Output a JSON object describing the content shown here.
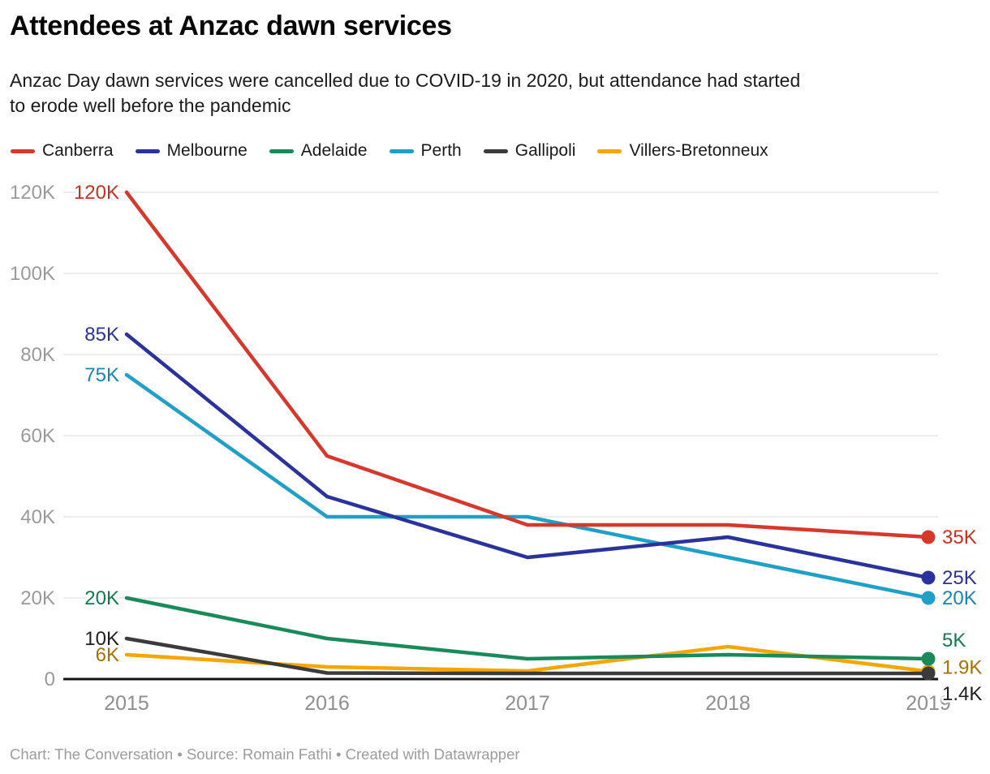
{
  "footer": {
    "credit": "Chart: The Conversation • Source: Romain Fathi • Created with Datawrapper"
  },
  "chart_data": {
    "type": "line",
    "title": "Attendees at Anzac dawn services",
    "subtitle": "Anzac Day dawn services were cancelled due to COVID-19 in 2020, but attendance had started to erode well before the pandemic",
    "subtitle_lines": [
      "Anzac Day dawn services were cancelled due to COVID-19 in 2020, but attendance had started",
      "to erode well before the pandemic"
    ],
    "x": [
      2015,
      2016,
      2017,
      2018,
      2019
    ],
    "x_tick_labels": [
      "2015",
      "2016",
      "2017",
      "2018",
      "2019"
    ],
    "y_ticks": [
      0,
      20000,
      40000,
      60000,
      80000,
      100000,
      120000
    ],
    "y_tick_labels": [
      "0",
      "20K",
      "40K",
      "60K",
      "80K",
      "100K",
      "120K"
    ],
    "ylim": [
      0,
      125000
    ],
    "grid": "horizontal",
    "grid_color": "#e5e5e5",
    "axis_color": "#141414",
    "legend_position": "top",
    "series": [
      {
        "name": "Canberra",
        "color": "#d6392b",
        "label_color": "#c9301f",
        "values": [
          120000,
          55000,
          38000,
          38000,
          35000
        ],
        "start_label": "120K",
        "end_label": "35K"
      },
      {
        "name": "Melbourne",
        "color": "#2a339b",
        "label_color": "#2a339b",
        "values": [
          85000,
          45000,
          30000,
          35000,
          25000
        ],
        "start_label": "85K",
        "end_label": "25K"
      },
      {
        "name": "Adelaide",
        "color": "#1b8a5a",
        "label_color": "#137a4a",
        "values": [
          20000,
          10000,
          5000,
          6000,
          5000
        ],
        "start_label": "20K",
        "end_label": "5K"
      },
      {
        "name": "Perth",
        "color": "#209fc7",
        "label_color": "#1787b2",
        "values": [
          75000,
          40000,
          40000,
          30000,
          20000
        ],
        "start_label": "75K",
        "end_label": "20K"
      },
      {
        "name": "Gallipoli",
        "color": "#3b3b3b",
        "label_color": "#1f1f1f",
        "values": [
          10000,
          1500,
          1400,
          1400,
          1400
        ],
        "start_label": "10K",
        "end_label": "1.4K"
      },
      {
        "name": "Villers-Bretonneux",
        "color": "#f7a600",
        "label_color": "#a87102",
        "values": [
          6000,
          3000,
          2000,
          8000,
          1900
        ],
        "start_label": "6K",
        "end_label": "1.9K"
      }
    ],
    "end_label_dy": {
      "Canberra": 0,
      "Melbourne": 0,
      "Adelaide": -23,
      "Perth": 0,
      "Gallipoli": 25,
      "Villers-Bretonneux": -5
    }
  }
}
